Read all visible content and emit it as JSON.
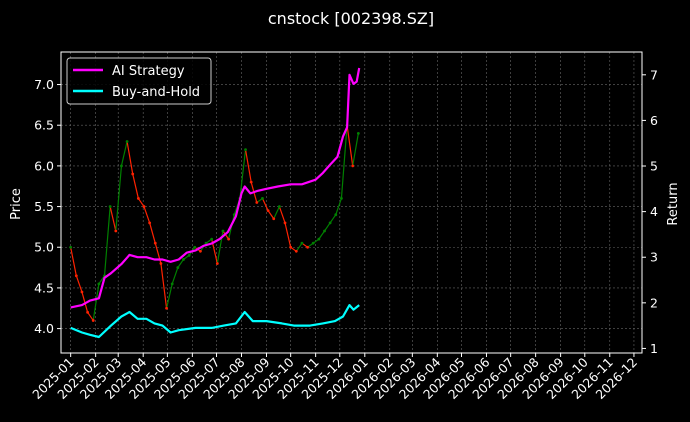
{
  "chart_data": {
    "type": "line",
    "title": "cnstock [002398.SZ]",
    "ylabel_left": "Price",
    "ylabel_right": "Return",
    "y_left_range": [
      3.7,
      7.4
    ],
    "y_right_range": [
      0.9,
      7.5
    ],
    "y_left_ticks": [
      "4.0",
      "4.5",
      "5.0",
      "5.5",
      "6.0",
      "6.5",
      "7.0"
    ],
    "y_right_ticks": [
      "1",
      "2",
      "3",
      "4",
      "5",
      "6",
      "7"
    ],
    "x_ticks": [
      "2025-01",
      "2025-02",
      "2025-03",
      "2025-04",
      "2025-05",
      "2025-06",
      "2025-07",
      "2025-08",
      "2025-09",
      "2025-10",
      "2025-11",
      "2025-12",
      "2026-01",
      "2026-02",
      "2026-03",
      "2026-04",
      "2026-05",
      "2026-06",
      "2026-07",
      "2026-08",
      "2026-09",
      "2026-10",
      "2026-11",
      "2026-12"
    ],
    "grid": true,
    "legend_position": "top-left",
    "series": [
      {
        "name": "AI Strategy",
        "axis": "right",
        "color": "#ff00ff",
        "x": [
          "2025-01-01",
          "2025-01-15",
          "2025-01-25",
          "2025-02-05",
          "2025-02-12",
          "2025-02-20",
          "2025-03-05",
          "2025-03-15",
          "2025-03-25",
          "2025-04-05",
          "2025-04-15",
          "2025-04-25",
          "2025-05-05",
          "2025-05-15",
          "2025-05-25",
          "2025-06-05",
          "2025-06-15",
          "2025-06-25",
          "2025-07-05",
          "2025-07-15",
          "2025-07-25",
          "2025-08-01",
          "2025-08-05",
          "2025-08-12",
          "2025-08-20",
          "2025-09-01",
          "2025-09-15",
          "2025-10-01",
          "2025-10-15",
          "2025-11-01",
          "2025-11-10",
          "2025-11-20",
          "2025-11-28",
          "2025-12-05",
          "2025-12-10",
          "2025-12-13",
          "2025-12-18",
          "2025-12-22",
          "2025-12-25"
        ],
        "values": [
          1.9,
          1.95,
          2.05,
          2.1,
          2.55,
          2.65,
          2.85,
          3.05,
          3.0,
          3.0,
          2.95,
          2.95,
          2.9,
          2.95,
          3.1,
          3.15,
          3.25,
          3.3,
          3.4,
          3.55,
          3.9,
          4.4,
          4.55,
          4.4,
          4.45,
          4.5,
          4.55,
          4.6,
          4.6,
          4.7,
          4.85,
          5.05,
          5.2,
          5.65,
          5.85,
          7.0,
          6.8,
          6.85,
          7.15
        ]
      },
      {
        "name": "Buy-and-Hold",
        "axis": "right",
        "color": "#00ffff",
        "x": [
          "2025-01-01",
          "2025-01-15",
          "2025-01-25",
          "2025-02-05",
          "2025-02-20",
          "2025-03-05",
          "2025-03-15",
          "2025-03-25",
          "2025-04-05",
          "2025-04-15",
          "2025-04-25",
          "2025-05-05",
          "2025-05-15",
          "2025-06-05",
          "2025-06-25",
          "2025-07-10",
          "2025-07-25",
          "2025-08-05",
          "2025-08-15",
          "2025-09-01",
          "2025-09-20",
          "2025-10-05",
          "2025-10-25",
          "2025-11-10",
          "2025-11-25",
          "2025-12-05",
          "2025-12-13",
          "2025-12-18",
          "2025-12-25"
        ],
        "values": [
          1.45,
          1.35,
          1.3,
          1.25,
          1.5,
          1.7,
          1.8,
          1.65,
          1.65,
          1.55,
          1.5,
          1.35,
          1.4,
          1.45,
          1.45,
          1.5,
          1.55,
          1.8,
          1.6,
          1.6,
          1.55,
          1.5,
          1.5,
          1.55,
          1.6,
          1.7,
          1.95,
          1.85,
          1.95
        ]
      },
      {
        "name": "Price",
        "axis": "left",
        "color_up": "#008000",
        "color_down": "#ff2200",
        "x": [
          "2025-01-01",
          "2025-01-08",
          "2025-01-15",
          "2025-01-22",
          "2025-01-29",
          "2025-02-05",
          "2025-02-12",
          "2025-02-19",
          "2025-02-26",
          "2025-03-05",
          "2025-03-12",
          "2025-03-19",
          "2025-03-26",
          "2025-04-02",
          "2025-04-09",
          "2025-04-16",
          "2025-04-23",
          "2025-04-30",
          "2025-05-07",
          "2025-05-14",
          "2025-05-21",
          "2025-05-28",
          "2025-06-04",
          "2025-06-11",
          "2025-06-18",
          "2025-06-25",
          "2025-07-02",
          "2025-07-09",
          "2025-07-16",
          "2025-07-23",
          "2025-07-30",
          "2025-08-06",
          "2025-08-13",
          "2025-08-20",
          "2025-08-27",
          "2025-09-03",
          "2025-09-10",
          "2025-09-17",
          "2025-09-24",
          "2025-10-01",
          "2025-10-08",
          "2025-10-15",
          "2025-10-22",
          "2025-10-29",
          "2025-11-05",
          "2025-11-12",
          "2025-11-19",
          "2025-11-26",
          "2025-12-03",
          "2025-12-10",
          "2025-12-17",
          "2025-12-24"
        ],
        "values": [
          5.0,
          4.65,
          4.45,
          4.2,
          4.1,
          4.55,
          4.65,
          5.5,
          5.2,
          6.0,
          6.3,
          5.9,
          5.6,
          5.5,
          5.3,
          5.05,
          4.8,
          4.25,
          4.55,
          4.75,
          4.85,
          4.9,
          5.0,
          4.95,
          5.05,
          5.1,
          4.8,
          5.2,
          5.1,
          5.4,
          5.6,
          6.2,
          5.8,
          5.55,
          5.6,
          5.45,
          5.35,
          5.5,
          5.3,
          5.0,
          4.95,
          5.05,
          5.0,
          5.05,
          5.1,
          5.2,
          5.3,
          5.4,
          5.6,
          6.5,
          6.0,
          6.4
        ]
      }
    ]
  }
}
